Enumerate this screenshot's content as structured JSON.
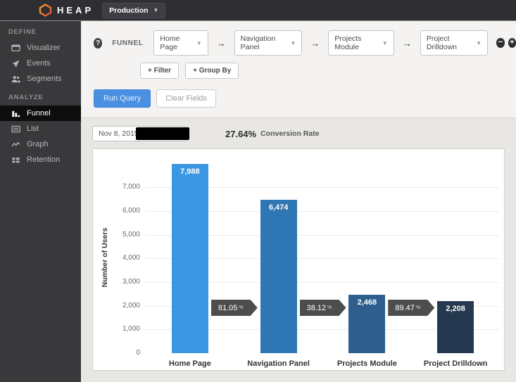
{
  "topbar": {
    "brand": "HEAP",
    "environment": "Production"
  },
  "sidebar": {
    "sections": [
      {
        "label": "DEFINE",
        "items": [
          {
            "label": "Visualizer"
          },
          {
            "label": "Events"
          },
          {
            "label": "Segments"
          }
        ]
      },
      {
        "label": "ANALYZE",
        "items": [
          {
            "label": "Funnel"
          },
          {
            "label": "List"
          },
          {
            "label": "Graph"
          },
          {
            "label": "Retention"
          }
        ]
      }
    ]
  },
  "funnel_builder": {
    "label": "FUNNEL",
    "help": "?",
    "steps": [
      "Home Page",
      "Navigation Panel",
      "Projects Module",
      "Project Drilldown"
    ],
    "filter_label": "+ Filter",
    "group_by_label": "+ Group By",
    "run_label": "Run Query",
    "clear_label": "Clear Fields",
    "remove_step_label": "−",
    "add_step_label": "+"
  },
  "results": {
    "date_value": "Nov 8, 2015",
    "conversion_rate": "27.64%",
    "conversion_rate_label": "Conversion Rate"
  },
  "chart_data": {
    "type": "bar",
    "title": "",
    "categories": [
      "Home Page",
      "Navigation Panel",
      "Projects Module",
      "Project Drilldown"
    ],
    "values": [
      7988,
      6474,
      2468,
      2208
    ],
    "value_labels": [
      "7,988",
      "6,474",
      "2,468",
      "2,208"
    ],
    "step_conversions": [
      "81.05",
      "38.12",
      "89.47"
    ],
    "xlabel": "",
    "ylabel": "Number of Users",
    "yticks": [
      0,
      1000,
      2000,
      3000,
      4000,
      5000,
      6000,
      7000
    ],
    "ytick_labels": [
      "0",
      "1,000",
      "2,000",
      "3,000",
      "4,000",
      "5,000",
      "6,000",
      "7,000"
    ],
    "ylim": [
      0,
      8200
    ],
    "grid": true,
    "legend": false,
    "bar_colors": [
      "#3b97e3",
      "#2f76b5",
      "#2d5e8e",
      "#24394f"
    ],
    "arrow_color": "#4d4d4d"
  },
  "colors": {
    "accent_blue": "#4a90e2",
    "topbar_bg": "#2f2f33",
    "sidebar_bg": "#39393b",
    "panel_bg": "#ffffff"
  }
}
